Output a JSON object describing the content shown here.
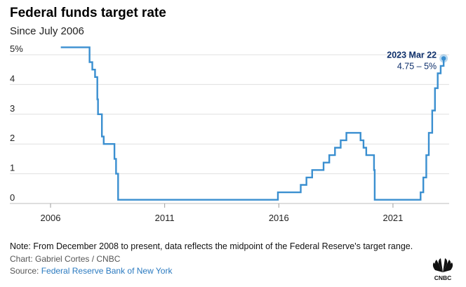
{
  "header": {
    "title": "Federal funds target rate",
    "subtitle": "Since July 2006"
  },
  "footer": {
    "note": "Note: From December 2008 to present, data reflects the midpoint of the Federal Reserve's target range.",
    "credit": "Chart: Gabriel Cortes / CNBC",
    "source_prefix": "Source: ",
    "source_link": "Federal Reserve Bank of New York",
    "logo_text": "CNBC"
  },
  "colors": {
    "line": "#3a8fd0",
    "annotation": "#0d2f6b",
    "grid": "#e0e0e0",
    "link": "#2a7ac0"
  },
  "chart_data": {
    "type": "line",
    "title": "Federal funds target rate",
    "subtitle": "Since July 2006",
    "xlabel": "",
    "ylabel": "",
    "xlim": [
      2006.0,
      2023.4
    ],
    "ylim": [
      0,
      5
    ],
    "y_ticks": [
      {
        "value": 5,
        "label": "5%"
      },
      {
        "value": 4,
        "label": "4"
      },
      {
        "value": 3,
        "label": "3"
      },
      {
        "value": 2,
        "label": "2"
      },
      {
        "value": 1,
        "label": "1"
      },
      {
        "value": 0,
        "label": "0"
      }
    ],
    "x_ticks": [
      {
        "value": 2006,
        "label": "2006"
      },
      {
        "value": 2011,
        "label": "2011"
      },
      {
        "value": 2016,
        "label": "2016"
      },
      {
        "value": 2021,
        "label": "2021"
      }
    ],
    "grid": true,
    "series": [
      {
        "points": [
          [
            2006.45,
            5.25
          ],
          [
            2007.71,
            5.25
          ],
          [
            2007.71,
            4.75
          ],
          [
            2007.83,
            4.75
          ],
          [
            2007.83,
            4.5
          ],
          [
            2007.95,
            4.5
          ],
          [
            2007.95,
            4.25
          ],
          [
            2008.05,
            4.25
          ],
          [
            2008.05,
            3.5
          ],
          [
            2008.08,
            3.5
          ],
          [
            2008.08,
            3.0
          ],
          [
            2008.25,
            3.0
          ],
          [
            2008.25,
            2.25
          ],
          [
            2008.33,
            2.25
          ],
          [
            2008.33,
            2.0
          ],
          [
            2008.8,
            2.0
          ],
          [
            2008.8,
            1.5
          ],
          [
            2008.87,
            1.5
          ],
          [
            2008.87,
            1.0
          ],
          [
            2008.96,
            1.0
          ],
          [
            2008.96,
            0.125
          ],
          [
            2015.96,
            0.125
          ],
          [
            2015.96,
            0.375
          ],
          [
            2016.96,
            0.375
          ],
          [
            2016.96,
            0.625
          ],
          [
            2017.21,
            0.625
          ],
          [
            2017.21,
            0.875
          ],
          [
            2017.46,
            0.875
          ],
          [
            2017.46,
            1.125
          ],
          [
            2017.96,
            1.125
          ],
          [
            2017.96,
            1.375
          ],
          [
            2018.21,
            1.375
          ],
          [
            2018.21,
            1.625
          ],
          [
            2018.46,
            1.625
          ],
          [
            2018.46,
            1.875
          ],
          [
            2018.71,
            1.875
          ],
          [
            2018.71,
            2.125
          ],
          [
            2018.96,
            2.125
          ],
          [
            2018.96,
            2.375
          ],
          [
            2019.58,
            2.375
          ],
          [
            2019.58,
            2.125
          ],
          [
            2019.71,
            2.125
          ],
          [
            2019.71,
            1.875
          ],
          [
            2019.83,
            1.875
          ],
          [
            2019.83,
            1.625
          ],
          [
            2020.17,
            1.625
          ],
          [
            2020.17,
            1.125
          ],
          [
            2020.2,
            1.125
          ],
          [
            2020.2,
            0.125
          ],
          [
            2022.21,
            0.125
          ],
          [
            2022.21,
            0.375
          ],
          [
            2022.33,
            0.375
          ],
          [
            2022.33,
            0.875
          ],
          [
            2022.46,
            0.875
          ],
          [
            2022.46,
            1.625
          ],
          [
            2022.57,
            1.625
          ],
          [
            2022.57,
            2.375
          ],
          [
            2022.72,
            2.375
          ],
          [
            2022.72,
            3.125
          ],
          [
            2022.84,
            3.125
          ],
          [
            2022.84,
            3.875
          ],
          [
            2022.96,
            3.875
          ],
          [
            2022.96,
            4.375
          ],
          [
            2023.09,
            4.375
          ],
          [
            2023.09,
            4.625
          ],
          [
            2023.22,
            4.625
          ],
          [
            2023.22,
            4.875
          ]
        ]
      }
    ],
    "annotations": [
      {
        "x": 2023.22,
        "y": 4.875,
        "label": "2023 Mar 22",
        "value_label": "4.75 – 5%"
      }
    ]
  }
}
